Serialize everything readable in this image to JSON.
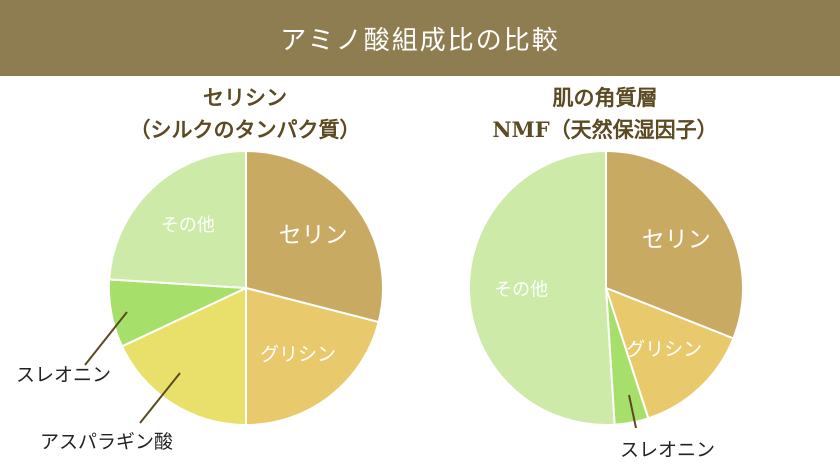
{
  "header": {
    "title": "アミノ酸組成比の比較"
  },
  "chart_data": [
    {
      "type": "pie",
      "title_line1": "セリシン",
      "title_line2": "（シルクのタンパク質）",
      "slices": [
        {
          "label": "セリン",
          "value": 29,
          "color": "#c8aa63"
        },
        {
          "label": "グリシン",
          "value": 21,
          "color": "#e8c96c"
        },
        {
          "label": "アスパラギン酸",
          "value": 18,
          "color": "#e8e06a"
        },
        {
          "label": "スレオニン",
          "value": 8,
          "color": "#a6e06a"
        },
        {
          "label": "その他",
          "value": 24,
          "color": "#cdeaa8"
        }
      ]
    },
    {
      "type": "pie",
      "title_line1": "肌の角質層",
      "title_line2": "NMF（天然保湿因子）",
      "slices": [
        {
          "label": "セリン",
          "value": 31,
          "color": "#c8aa63"
        },
        {
          "label": "グリシン",
          "value": 14,
          "color": "#e8c96c"
        },
        {
          "label": "スレオニン",
          "value": 4,
          "color": "#a6e06a"
        },
        {
          "label": "その他",
          "value": 51,
          "color": "#cdeaa8"
        }
      ]
    }
  ]
}
